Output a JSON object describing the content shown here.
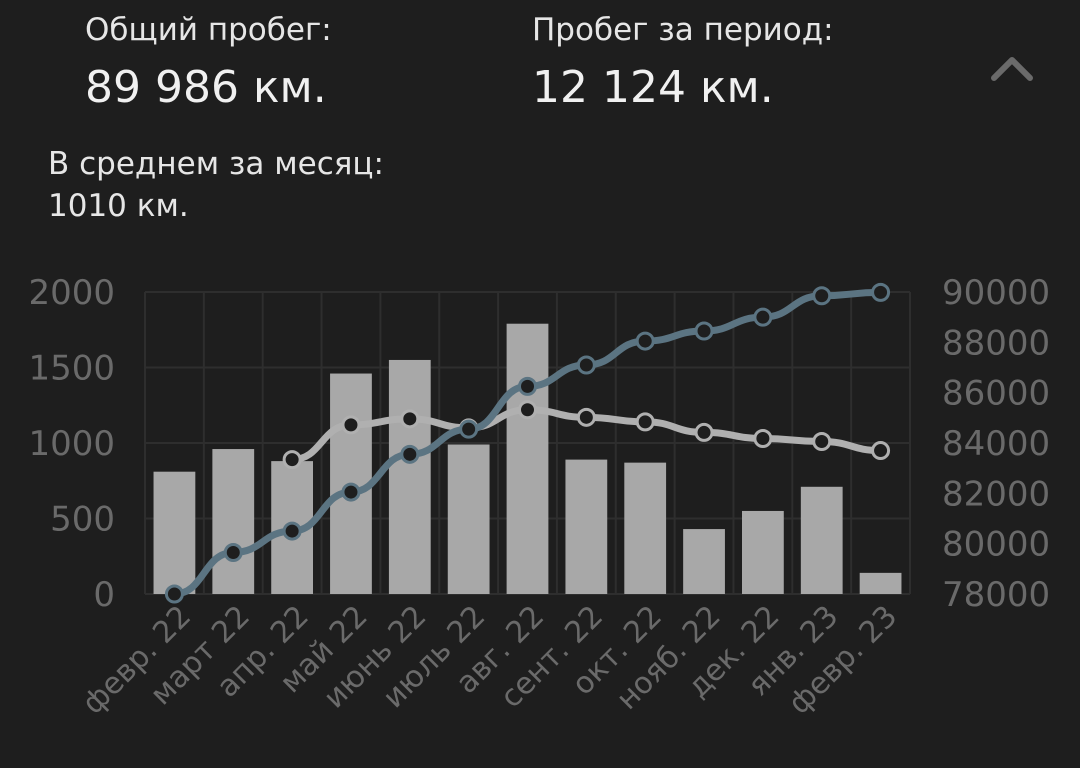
{
  "summary": {
    "total_label": "Общий пробег:",
    "total_value": "89 986 км.",
    "period_label": "Пробег за период:",
    "period_value": "12 124 км.",
    "avg_label": "В среднем за месяц:",
    "avg_value": "1010 км."
  },
  "icons": {
    "collapse": "chevron-up-icon"
  },
  "chart_data": {
    "type": "bar",
    "categories": [
      "февр. 22",
      "март 22",
      "апр. 22",
      "май 22",
      "июнь 22",
      "июль 22",
      "авг. 22",
      "сент. 22",
      "окт. 22",
      "нояб. 22",
      "дек. 22",
      "янв. 23",
      "февр. 23"
    ],
    "series": [
      {
        "type": "bar",
        "axis": "left",
        "values": [
          810,
          960,
          880,
          1460,
          1550,
          990,
          1790,
          890,
          870,
          430,
          550,
          710,
          140
        ]
      },
      {
        "type": "line",
        "axis": "left",
        "values": [
          null,
          null,
          890,
          1120,
          1160,
          1100,
          1220,
          1170,
          1140,
          1070,
          1030,
          1010,
          950
        ]
      },
      {
        "type": "line",
        "axis": "right",
        "values": [
          78000,
          79650,
          80500,
          82050,
          83550,
          84550,
          86250,
          87100,
          88050,
          88450,
          89000,
          89850,
          89986
        ]
      }
    ],
    "y_left": {
      "ticks": [
        0,
        500,
        1000,
        1500,
        2000
      ],
      "range": [
        0,
        2000
      ]
    },
    "y_right": {
      "ticks": [
        78000,
        80000,
        82000,
        84000,
        86000,
        88000,
        90000
      ],
      "range": [
        78000,
        90000
      ]
    },
    "grid": true,
    "colors": {
      "bar": "#a8a8a8",
      "avg_line": "#b0b0b0",
      "cumulative_line": "#5b7482",
      "grid": "#2e2e2e",
      "tick_text": "#6a6a6a"
    }
  }
}
